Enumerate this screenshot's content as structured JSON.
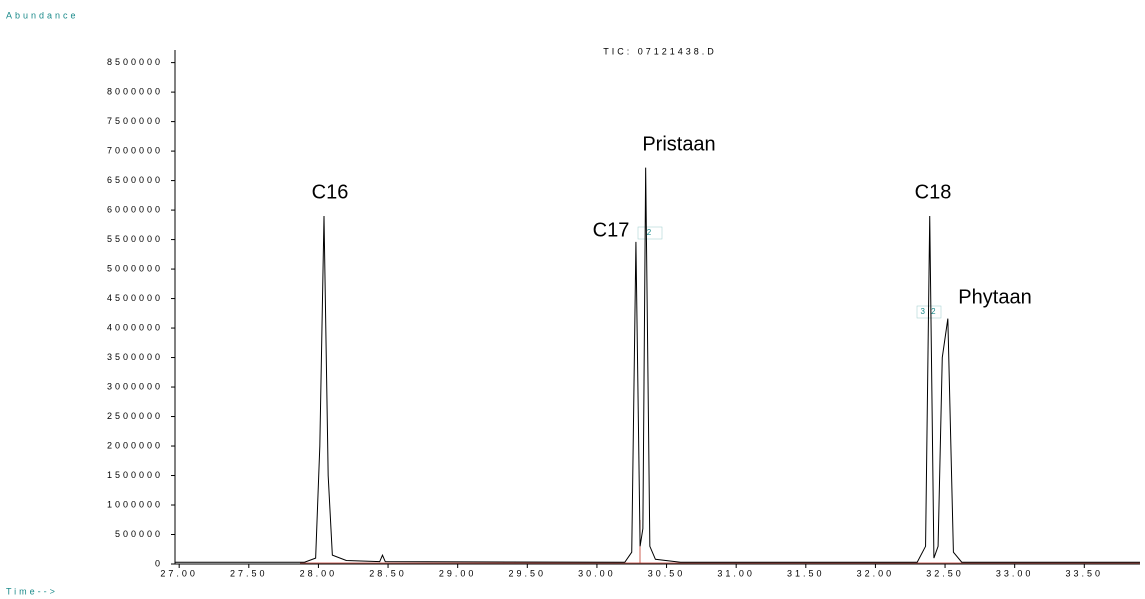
{
  "chart_data": {
    "type": "line",
    "title": "TIC: 07121438.D",
    "y_label": "Abundance",
    "x_label": "Time-->",
    "annotations": [
      "C16",
      "C17",
      "Pristaan",
      "C18",
      "Phytaan"
    ],
    "peak_markers": [
      "2",
      "3 2"
    ],
    "x": [
      26.97,
      27.9,
      27.98,
      28.01,
      28.04,
      28.07,
      28.1,
      28.2,
      28.44,
      28.46,
      28.48,
      30.2,
      30.25,
      30.28,
      30.31,
      30.33,
      30.35,
      30.38,
      30.42,
      30.6,
      32.3,
      32.36,
      32.39,
      32.42,
      32.45,
      32.48,
      32.52,
      32.56,
      32.62,
      33.9
    ],
    "series": [
      {
        "color": "#000000",
        "values": [
          30000,
          30000,
          100000,
          2000000,
          5900000,
          1500000,
          150000,
          60000,
          40000,
          150000,
          40000,
          30000,
          200000,
          5460000,
          300000,
          600000,
          6720000,
          300000,
          80000,
          30000,
          30000,
          300000,
          5900000,
          100000,
          300000,
          3500000,
          4160000,
          200000,
          30000,
          30000
        ]
      }
    ],
    "xlim": [
      26.97,
      33.9
    ],
    "ylim": [
      0,
      8680000
    ],
    "xticks": [
      {
        "value": 27,
        "label": "27.00"
      },
      {
        "value": 27.5,
        "label": "27.50"
      },
      {
        "value": 28,
        "label": "28.00"
      },
      {
        "value": 28.5,
        "label": "28.50"
      },
      {
        "value": 29,
        "label": "29.00"
      },
      {
        "value": 29.5,
        "label": "29.50"
      },
      {
        "value": 30,
        "label": "30.00"
      },
      {
        "value": 30.5,
        "label": "30.50"
      },
      {
        "value": 31,
        "label": "31.00"
      },
      {
        "value": 31.5,
        "label": "31.50"
      },
      {
        "value": 32,
        "label": "32.00"
      },
      {
        "value": 32.5,
        "label": "32.50"
      },
      {
        "value": 33,
        "label": "33.00"
      },
      {
        "value": 33.5,
        "label": "33.50"
      }
    ],
    "yticks": [
      0,
      500000,
      1000000,
      1500000,
      2000000,
      2500000,
      3000000,
      3500000,
      4000000,
      4500000,
      5000000,
      5500000,
      6000000,
      6500000,
      7000000,
      7500000,
      8000000,
      8500000
    ]
  }
}
